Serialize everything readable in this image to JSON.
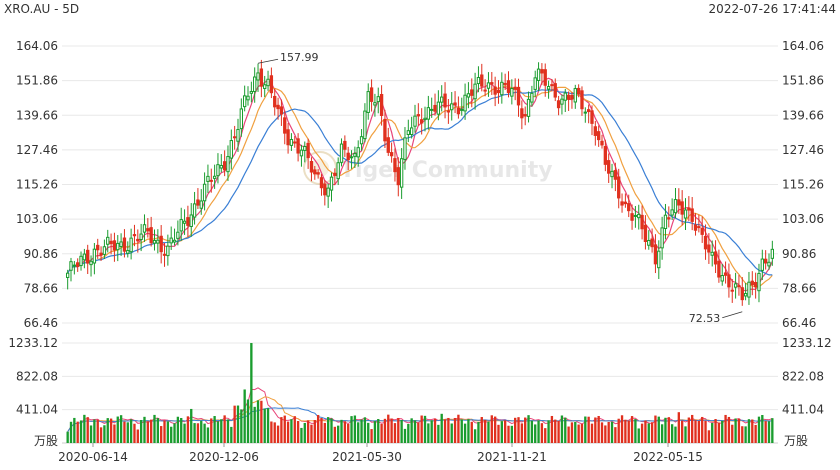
{
  "header": {
    "symbol": "XRO.AU - 5D",
    "timestamp": "2022-07-26 17:41:44"
  },
  "watermark": "Tiger Community",
  "colors": {
    "up": "#1a9c2e",
    "down": "#e0301e",
    "ma_fast": "#e8457a",
    "ma_mid": "#f0a040",
    "ma_slow": "#3a7fd5",
    "grid": "#e8e8e8",
    "text": "#333333"
  },
  "chart_data": [
    {
      "type": "candlestick",
      "title": "",
      "ylim": [
        66.46,
        164.06
      ],
      "y_ticks": [
        "164.06",
        "151.86",
        "139.66",
        "127.46",
        "115.26",
        "103.06",
        "90.86",
        "78.66",
        "66.46"
      ],
      "x_ticks": [
        "2020-06-14",
        "2020-12-06",
        "2021-05-30",
        "2021-11-21",
        "2022-05-15"
      ],
      "annotations": [
        {
          "label": "157.99",
          "value": 157.99,
          "type": "high"
        },
        {
          "label": "72.53",
          "value": 72.53,
          "type": "low"
        }
      ],
      "series_moving_averages": [
        "ma_fast",
        "ma_mid",
        "ma_slow"
      ]
    },
    {
      "type": "bar",
      "title": "",
      "ylabel": "万股",
      "y_ticks": [
        "1233.12",
        "822.08",
        "411.04"
      ],
      "ylim": [
        0,
        1233.12
      ]
    }
  ]
}
